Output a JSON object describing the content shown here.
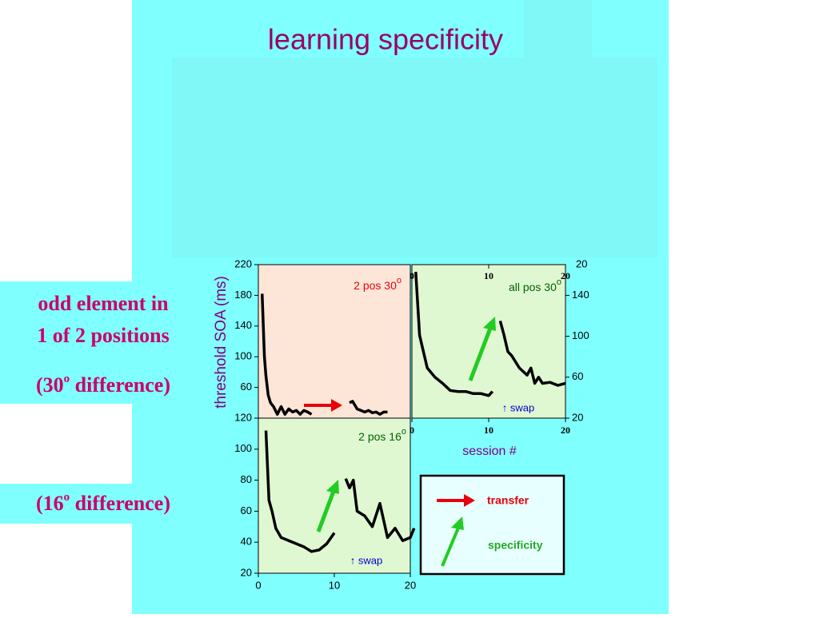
{
  "title": "learning specificity",
  "notes": {
    "line1": "odd element in",
    "line2": "1 of 2 positions",
    "diff30": {
      "open": "(30",
      "sup": "o",
      "close": " difference)"
    },
    "diff16": {
      "open": "(16",
      "sup": "o",
      "close": " difference)"
    }
  },
  "y_axis_label": "threshold SOA (ms)",
  "x_axis_label": "session #",
  "legend": {
    "transfer": "transfer",
    "specificity": "specificity"
  },
  "chart_data": [
    {
      "type": "line",
      "annotation": "2 pos 30",
      "annotation_sup": "o",
      "annotation_color": "#e8000b",
      "background": "#fde6d8",
      "xlim": [
        0,
        20
      ],
      "ylim": [
        20,
        220
      ],
      "yticks": [
        60,
        100,
        140,
        180,
        220
      ],
      "x": [
        0.5,
        0.8,
        1.0,
        1.3,
        1.6,
        2.0,
        2.5,
        3.0,
        3.5,
        4.0,
        4.5,
        5.0,
        5.5,
        6.0,
        6.5,
        7.0,
        9.0,
        12.0,
        12.4,
        13.0,
        13.5,
        14.0,
        14.5,
        15.0,
        15.5,
        16.0,
        16.5,
        17.0
      ],
      "series": [
        {
          "color": "#000000",
          "values": [
            182,
            100,
            75,
            50,
            40,
            35,
            25,
            35,
            25,
            32,
            28,
            30,
            25,
            30,
            28,
            25,
            null,
            40,
            42,
            32,
            30,
            28,
            30,
            27,
            28,
            25,
            28,
            28
          ]
        }
      ]
    },
    {
      "type": "line",
      "annotation": "all pos 30",
      "annotation_sup": "o",
      "annotation_color": "#006400",
      "background": "#e0f8d2",
      "note": "↑ swap",
      "corner_label": "20",
      "xlim": [
        0,
        20
      ],
      "ylim": [
        20,
        170
      ],
      "yticks": [
        20,
        60,
        100,
        140
      ],
      "xticks": [
        0,
        10,
        20
      ],
      "x": [
        0.5,
        1.0,
        1.5,
        2.0,
        3.0,
        4.0,
        5.0,
        6.0,
        7.0,
        8.0,
        9.0,
        10.0,
        10.5,
        11.0,
        11.5,
        12.0,
        12.5,
        13.0,
        14.0,
        15.0,
        15.5,
        16.0,
        16.5,
        17.0,
        18.0,
        19.0,
        20.0
      ],
      "series": [
        {
          "color": "#000000",
          "values": [
            163,
            101,
            85,
            69,
            60,
            54,
            47,
            46,
            46,
            44,
            44,
            42,
            46,
            null,
            115,
            101,
            85,
            81,
            69,
            62,
            69,
            54,
            60,
            54,
            55,
            52,
            54
          ]
        }
      ]
    },
    {
      "type": "line",
      "annotation": "2 pos 16",
      "annotation_sup": "o",
      "annotation_color": "#006400",
      "background": "#e0f8d2",
      "note": "↑ swap",
      "xlim": [
        0,
        20
      ],
      "ylim": [
        20,
        120
      ],
      "yticks": [
        20,
        40,
        60,
        80,
        100,
        120
      ],
      "xticks": [
        0,
        10,
        20
      ],
      "x": [
        1.0,
        1.4,
        1.8,
        2.3,
        3.0,
        4.0,
        5.0,
        6.0,
        7.0,
        8.0,
        9.0,
        10.0,
        11.0,
        11.5,
        12.0,
        12.5,
        13.0,
        14.0,
        15.0,
        16.0,
        17.0,
        18.0,
        19.0,
        20.0,
        20.5
      ],
      "series": [
        {
          "color": "#000000",
          "values": [
            112,
            67,
            60,
            49,
            43,
            41,
            39,
            37,
            34,
            35,
            39,
            46,
            null,
            81,
            75,
            80,
            60,
            57,
            50,
            65,
            43,
            49,
            41,
            43,
            49
          ]
        }
      ]
    }
  ]
}
